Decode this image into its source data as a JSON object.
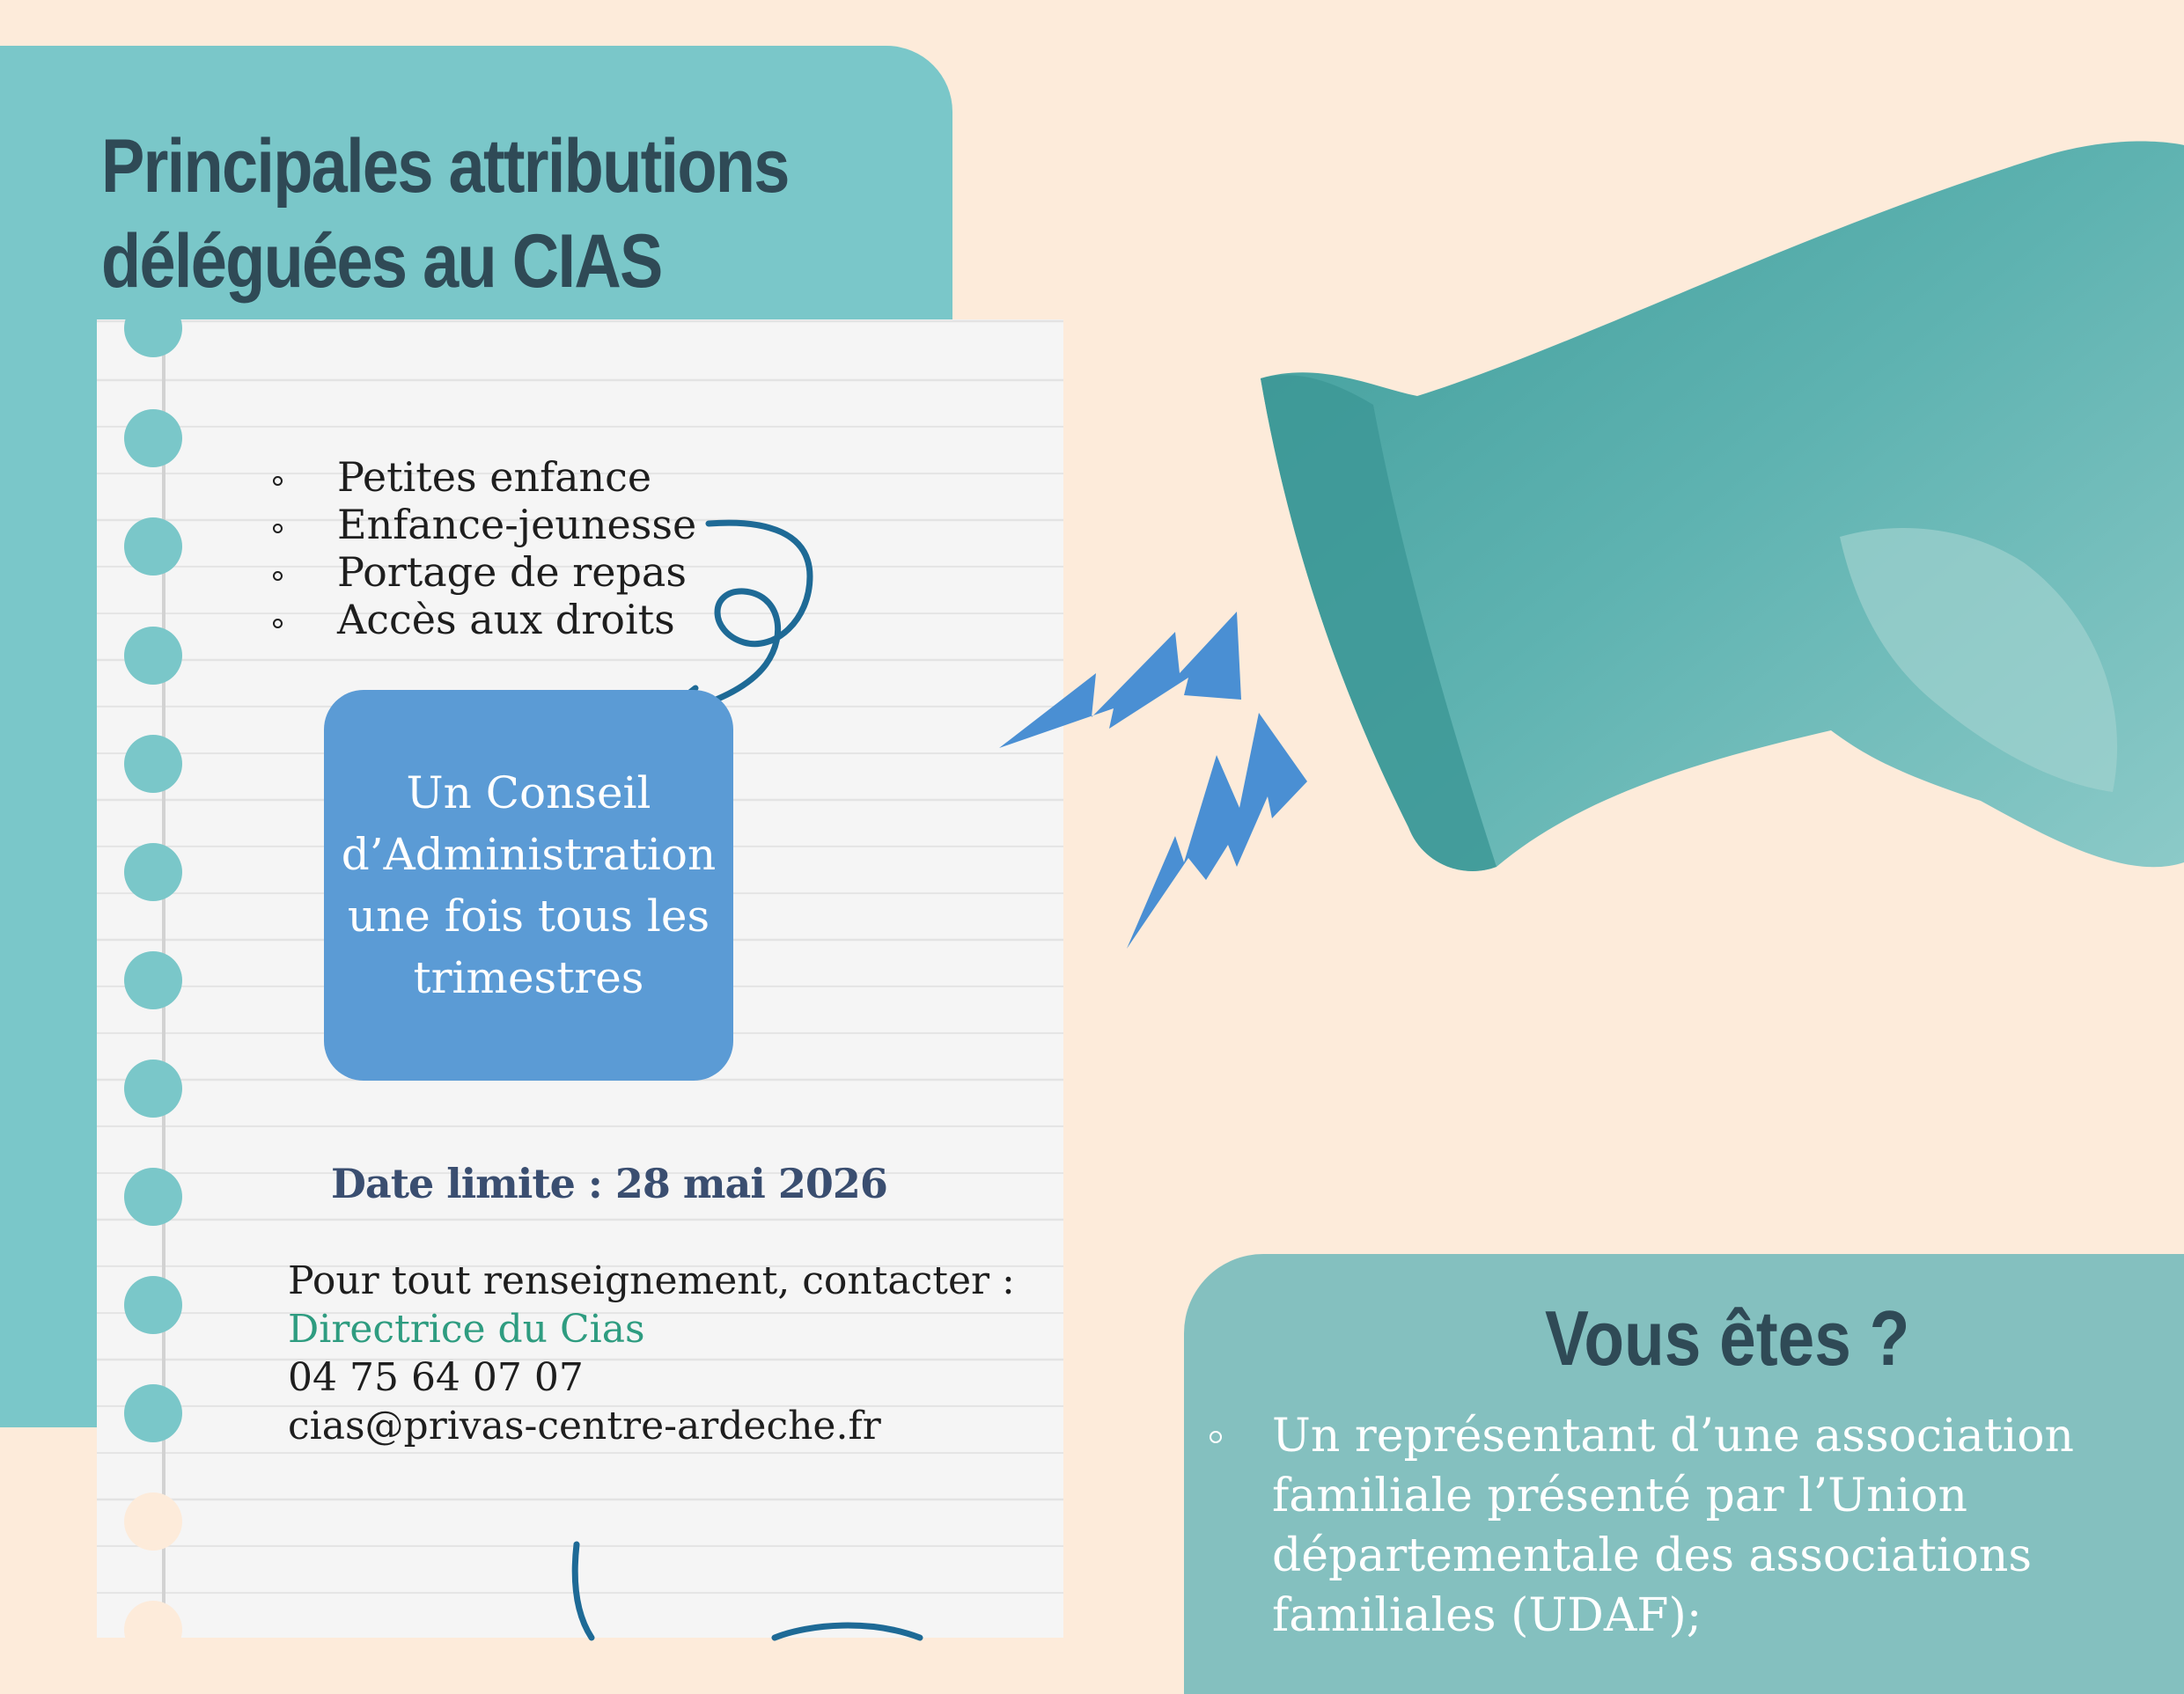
{
  "header": {
    "title_line1": "Principales attributions",
    "title_line2": "déléguées au CIAS"
  },
  "topics": [
    "Petites enfance",
    "Enfance-jeunesse",
    "Portage de repas",
    "Accès aux droits"
  ],
  "council": {
    "line1": "Un Conseil",
    "line2": "d’Administration",
    "line3": "une fois tous les",
    "line4": "trimestres"
  },
  "deadline": "Date limite : 28 mai  2026",
  "contact": {
    "intro": "Pour tout renseignement, contacter :",
    "person": "Directrice du Cias",
    "phone": " 04 75 64 07 07",
    "email": "cias@privas-centre-ardeche.fr"
  },
  "vous_etes": {
    "title": "Vous êtes ?",
    "items": [
      {
        "line1": "Un représentant d’une association",
        "line2": "familiale présenté par l’Union",
        "line3": "départementale des associations",
        "line4": "familiales (UDAF);"
      }
    ]
  },
  "colors": {
    "background": "#fdebda",
    "teal_panel": "#7ac7c9",
    "title_dark": "#2f4a56",
    "box_blue": "#5b9bd5",
    "deadline_navy": "#3a4e70",
    "link_green": "#2e9c80",
    "arrow_blue": "#1e6a96",
    "megaphone": "#4aa8a6"
  },
  "icons": [
    "megaphone-icon",
    "lightning-bolt-icon",
    "curly-arrow-icon"
  ]
}
